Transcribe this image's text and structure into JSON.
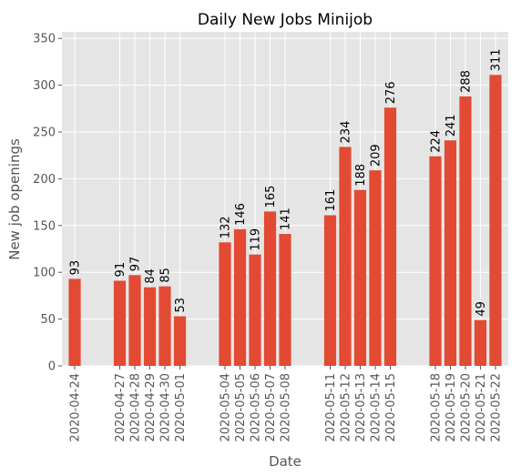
{
  "chart_data": {
    "type": "bar",
    "title": "Daily New Jobs Minijob",
    "xlabel": "Date",
    "ylabel": "New job openings",
    "ylim": [
      0,
      357
    ],
    "yticks": [
      0,
      50,
      100,
      150,
      200,
      250,
      300,
      350
    ],
    "grid": true,
    "bar_color": "#E24A33",
    "background_color": "#E5E5E5",
    "grid_color": "#FFFFFF",
    "x_start": "2020-04-24",
    "x_end": "2020-05-22",
    "categories": [
      "2020-04-24",
      "2020-04-27",
      "2020-04-28",
      "2020-04-29",
      "2020-04-30",
      "2020-05-01",
      "2020-05-04",
      "2020-05-05",
      "2020-05-06",
      "2020-05-07",
      "2020-05-08",
      "2020-05-11",
      "2020-05-12",
      "2020-05-13",
      "2020-05-14",
      "2020-05-15",
      "2020-05-18",
      "2020-05-19",
      "2020-05-20",
      "2020-05-21",
      "2020-05-22"
    ],
    "values": [
      93,
      91,
      97,
      84,
      85,
      53,
      132,
      146,
      119,
      165,
      141,
      161,
      234,
      188,
      209,
      276,
      224,
      241,
      288,
      49,
      311
    ]
  }
}
